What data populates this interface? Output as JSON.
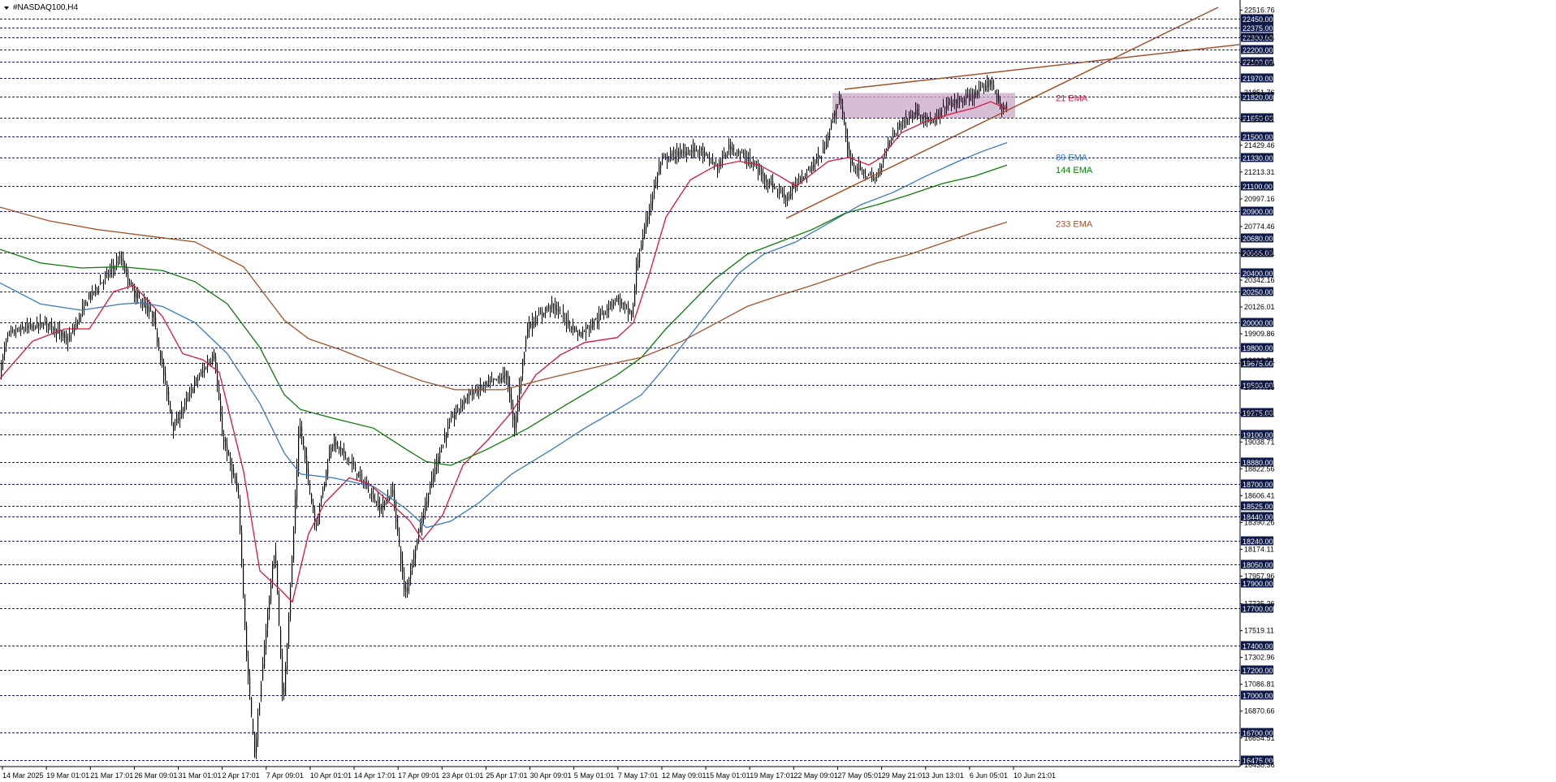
{
  "chart_data": {
    "type": "candlestick",
    "symbol_title": "#NASDAQ100,H4",
    "ylim": [
      16424,
      22540
    ],
    "y_axis_ticks": [
      "22516.76",
      "22300.81",
      "22084.86",
      "21851.76",
      "21635.31",
      "21429.46",
      "21213.31",
      "20997.16",
      "20774.46",
      "20558.31",
      "20342.16",
      "20126.01",
      "19909.86",
      "19693.71",
      "19477.56",
      "19261.41",
      "19038.71",
      "18822.56",
      "18606.41",
      "18390.26",
      "18174.11",
      "17957.96",
      "17735.26",
      "17519.11",
      "17302.96",
      "17086.81",
      "16870.66",
      "16654.51",
      "16438.36"
    ],
    "horizontal_levels": [
      "22450.00",
      "22375.00",
      "22300.00",
      "22200.00",
      "22100.00",
      "21970.00",
      "21820.00",
      "21650.00",
      "21500.00",
      "21330.00",
      "21100.00",
      "20900.00",
      "20680.00",
      "20565.00",
      "20400.00",
      "20250.00",
      "20000.00",
      "19800.00",
      "19675.00",
      "19500.00",
      "19275.00",
      "19100.00",
      "18880.00",
      "18700.00",
      "18525.00",
      "18440.00",
      "18240.00",
      "18050.00",
      "17900.00",
      "17700.00",
      "17400.00",
      "17200.00",
      "17000.00",
      "16700.00",
      "16475.00"
    ],
    "time_labels": [
      "14 Mar 2025",
      "19 Mar 01:01",
      "21 Mar 17:01",
      "26 Mar 09:01",
      "31 Mar 01:01",
      "2 Apr 17:01",
      "7 Apr 09:01",
      "10 Apr 01:01",
      "14 Apr 17:01",
      "17 Apr 09:01",
      "23 Apr 01:01",
      "25 Apr 17:01",
      "30 Apr 09:01",
      "5 May 01:01",
      "7 May 17:01",
      "12 May 09:01",
      "15 May 01:01",
      "19 May 17:01",
      "22 May 09:01",
      "27 May 05:01",
      "29 May 21:01",
      "3 Jun 13:01",
      "6 Jun 05:01",
      "10 Jun 21:01"
    ],
    "price_anchors": [
      [
        0,
        19550
      ],
      [
        10,
        19900
      ],
      [
        30,
        19950
      ],
      [
        60,
        20000
      ],
      [
        85,
        19850
      ],
      [
        110,
        20200
      ],
      [
        150,
        20520
      ],
      [
        165,
        20250
      ],
      [
        190,
        20050
      ],
      [
        215,
        19150
      ],
      [
        240,
        19500
      ],
      [
        265,
        19750
      ],
      [
        275,
        19100
      ],
      [
        295,
        18600
      ],
      [
        305,
        17300
      ],
      [
        315,
        16520
      ],
      [
        330,
        17600
      ],
      [
        340,
        18200
      ],
      [
        350,
        16900
      ],
      [
        362,
        18200
      ],
      [
        370,
        19200
      ],
      [
        390,
        18350
      ],
      [
        410,
        19050
      ],
      [
        430,
        18900
      ],
      [
        450,
        18700
      ],
      [
        470,
        18500
      ],
      [
        485,
        18650
      ],
      [
        500,
        17800
      ],
      [
        520,
        18400
      ],
      [
        540,
        18900
      ],
      [
        555,
        19200
      ],
      [
        575,
        19400
      ],
      [
        600,
        19500
      ],
      [
        625,
        19580
      ],
      [
        635,
        19150
      ],
      [
        650,
        19950
      ],
      [
        680,
        20150
      ],
      [
        715,
        19900
      ],
      [
        740,
        20050
      ],
      [
        760,
        20200
      ],
      [
        780,
        20050
      ],
      [
        785,
        20450
      ],
      [
        800,
        20900
      ],
      [
        815,
        21300
      ],
      [
        830,
        21350
      ],
      [
        860,
        21400
      ],
      [
        885,
        21250
      ],
      [
        900,
        21420
      ],
      [
        925,
        21300
      ],
      [
        945,
        21150
      ],
      [
        970,
        21000
      ],
      [
        985,
        21150
      ],
      [
        1000,
        21250
      ],
      [
        1015,
        21380
      ],
      [
        1025,
        21600
      ],
      [
        1035,
        21820
      ],
      [
        1048,
        21300
      ],
      [
        1065,
        21200
      ],
      [
        1080,
        21150
      ],
      [
        1095,
        21450
      ],
      [
        1110,
        21600
      ],
      [
        1130,
        21700
      ],
      [
        1150,
        21600
      ],
      [
        1165,
        21750
      ],
      [
        1190,
        21800
      ],
      [
        1210,
        21870
      ],
      [
        1222,
        21950
      ],
      [
        1232,
        21750
      ],
      [
        1240,
        21720
      ]
    ],
    "series": [
      {
        "name": "21 EMA",
        "color": "#dc143c",
        "points": [
          [
            0,
            19550
          ],
          [
            40,
            19850
          ],
          [
            80,
            19950
          ],
          [
            110,
            19950
          ],
          [
            140,
            20250
          ],
          [
            165,
            20300
          ],
          [
            200,
            20050
          ],
          [
            225,
            19750
          ],
          [
            250,
            19700
          ],
          [
            270,
            19600
          ],
          [
            300,
            18800
          ],
          [
            320,
            18000
          ],
          [
            345,
            17850
          ],
          [
            360,
            17750
          ],
          [
            380,
            18300
          ],
          [
            400,
            18550
          ],
          [
            430,
            18750
          ],
          [
            455,
            18700
          ],
          [
            480,
            18550
          ],
          [
            505,
            18400
          ],
          [
            520,
            18250
          ],
          [
            545,
            18450
          ],
          [
            570,
            18850
          ],
          [
            600,
            19050
          ],
          [
            630,
            19280
          ],
          [
            660,
            19580
          ],
          [
            690,
            19740
          ],
          [
            720,
            19840
          ],
          [
            760,
            19880
          ],
          [
            780,
            20000
          ],
          [
            800,
            20400
          ],
          [
            820,
            20850
          ],
          [
            850,
            21150
          ],
          [
            880,
            21260
          ],
          [
            910,
            21300
          ],
          [
            935,
            21270
          ],
          [
            960,
            21180
          ],
          [
            980,
            21100
          ],
          [
            1000,
            21200
          ],
          [
            1020,
            21300
          ],
          [
            1045,
            21330
          ],
          [
            1070,
            21270
          ],
          [
            1085,
            21330
          ],
          [
            1110,
            21530
          ],
          [
            1140,
            21620
          ],
          [
            1170,
            21680
          ],
          [
            1200,
            21730
          ],
          [
            1220,
            21780
          ],
          [
            1240,
            21720
          ]
        ]
      },
      {
        "name": "89 EMA",
        "color": "#3a79b9",
        "points": [
          [
            0,
            20320
          ],
          [
            50,
            20150
          ],
          [
            100,
            20100
          ],
          [
            150,
            20150
          ],
          [
            175,
            20160
          ],
          [
            200,
            20130
          ],
          [
            240,
            20000
          ],
          [
            280,
            19750
          ],
          [
            320,
            19350
          ],
          [
            350,
            18950
          ],
          [
            370,
            18780
          ],
          [
            410,
            18750
          ],
          [
            460,
            18680
          ],
          [
            500,
            18500
          ],
          [
            525,
            18350
          ],
          [
            555,
            18400
          ],
          [
            590,
            18550
          ],
          [
            630,
            18780
          ],
          [
            680,
            18980
          ],
          [
            720,
            19150
          ],
          [
            760,
            19300
          ],
          [
            790,
            19420
          ],
          [
            820,
            19650
          ],
          [
            850,
            19900
          ],
          [
            880,
            20150
          ],
          [
            910,
            20400
          ],
          [
            940,
            20550
          ],
          [
            980,
            20650
          ],
          [
            1020,
            20800
          ],
          [
            1060,
            20950
          ],
          [
            1100,
            21050
          ],
          [
            1140,
            21180
          ],
          [
            1180,
            21300
          ],
          [
            1210,
            21380
          ],
          [
            1240,
            21450
          ]
        ]
      },
      {
        "name": "144 EMA",
        "color": "#0b7a0b",
        "points": [
          [
            0,
            20590
          ],
          [
            50,
            20480
          ],
          [
            100,
            20440
          ],
          [
            150,
            20450
          ],
          [
            200,
            20420
          ],
          [
            240,
            20330
          ],
          [
            280,
            20150
          ],
          [
            320,
            19800
          ],
          [
            350,
            19420
          ],
          [
            370,
            19300
          ],
          [
            410,
            19230
          ],
          [
            460,
            19150
          ],
          [
            500,
            18980
          ],
          [
            525,
            18880
          ],
          [
            555,
            18850
          ],
          [
            600,
            18980
          ],
          [
            650,
            19150
          ],
          [
            700,
            19350
          ],
          [
            760,
            19580
          ],
          [
            790,
            19720
          ],
          [
            820,
            19950
          ],
          [
            850,
            20150
          ],
          [
            880,
            20350
          ],
          [
            920,
            20550
          ],
          [
            960,
            20650
          ],
          [
            1000,
            20750
          ],
          [
            1040,
            20880
          ],
          [
            1080,
            20950
          ],
          [
            1120,
            21030
          ],
          [
            1160,
            21120
          ],
          [
            1200,
            21180
          ],
          [
            1240,
            21270
          ]
        ]
      },
      {
        "name": "233 EMA",
        "color": "#a0522d",
        "points": [
          [
            0,
            20930
          ],
          [
            60,
            20820
          ],
          [
            120,
            20750
          ],
          [
            180,
            20700
          ],
          [
            240,
            20650
          ],
          [
            300,
            20450
          ],
          [
            350,
            20020
          ],
          [
            380,
            19870
          ],
          [
            420,
            19780
          ],
          [
            470,
            19650
          ],
          [
            520,
            19530
          ],
          [
            560,
            19460
          ],
          [
            620,
            19460
          ],
          [
            680,
            19560
          ],
          [
            740,
            19650
          ],
          [
            790,
            19720
          ],
          [
            840,
            19850
          ],
          [
            880,
            19990
          ],
          [
            920,
            20130
          ],
          [
            960,
            20220
          ],
          [
            1000,
            20300
          ],
          [
            1040,
            20390
          ],
          [
            1080,
            20480
          ],
          [
            1120,
            20550
          ],
          [
            1160,
            20640
          ],
          [
            1200,
            20730
          ],
          [
            1240,
            20810
          ]
        ]
      }
    ],
    "ema_labels": [
      {
        "text": "21 EMA",
        "color": "#dc143c"
      },
      {
        "text": "89 EMA",
        "color": "#3a79b9"
      },
      {
        "text": "144 EMA",
        "color": "#0b7a0b"
      },
      {
        "text": "233 EMA",
        "color": "#a0522d"
      }
    ],
    "trendlines": [
      {
        "name": "upper-wedge-line",
        "color": "#a0522d",
        "from": [
          1040,
          21880
        ],
        "to": [
          1526,
          22240
        ]
      },
      {
        "name": "lower-wedge-line",
        "color": "#a0522d",
        "from": [
          968,
          20840
        ],
        "to": [
          1500,
          22540
        ]
      }
    ],
    "zone": {
      "name": "resistance-zone",
      "color": "#c9a8c9",
      "from_x": 1025,
      "to_x": 1250,
      "top": 21850,
      "bottom": 21650
    },
    "colors": {
      "grid": "#1a1a6e",
      "level_bg": "#0d1a4a",
      "candle": "#000000",
      "background": "#ffffff"
    }
  }
}
